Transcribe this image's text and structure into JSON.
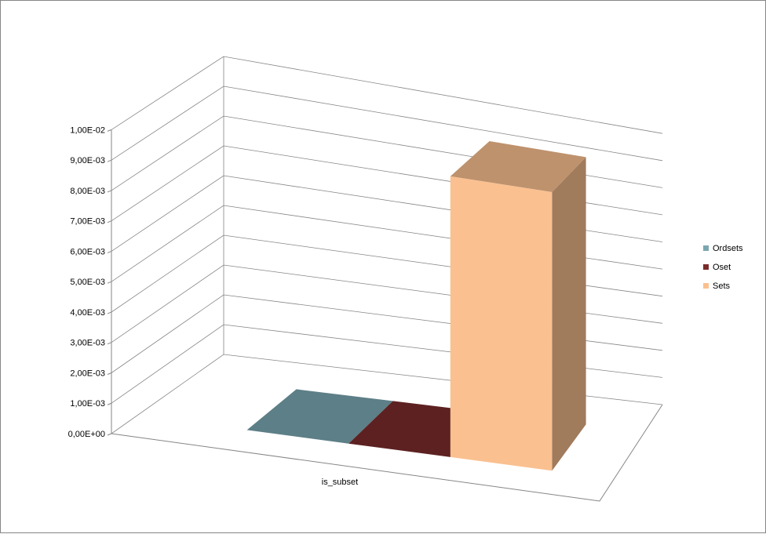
{
  "chart_data": {
    "type": "bar",
    "style": "3d-clustered-column",
    "categories": [
      "is_subset"
    ],
    "series": [
      {
        "name": "Ordsets",
        "color": "#7BA7B1",
        "values": [
          0.0
        ]
      },
      {
        "name": "Oset",
        "color": "#7A2B2B",
        "values": [
          0.0
        ]
      },
      {
        "name": "Sets",
        "color": "#FAC090",
        "values": [
          0.0095
        ]
      }
    ],
    "yticks": [
      "0,00E+00",
      "1,00E-03",
      "2,00E-03",
      "3,00E-03",
      "4,00E-03",
      "5,00E-03",
      "6,00E-03",
      "7,00E-03",
      "8,00E-03",
      "9,00E-03",
      "1,00E-02"
    ],
    "ylim": [
      0,
      0.01
    ],
    "grid": true,
    "legend": "right"
  }
}
